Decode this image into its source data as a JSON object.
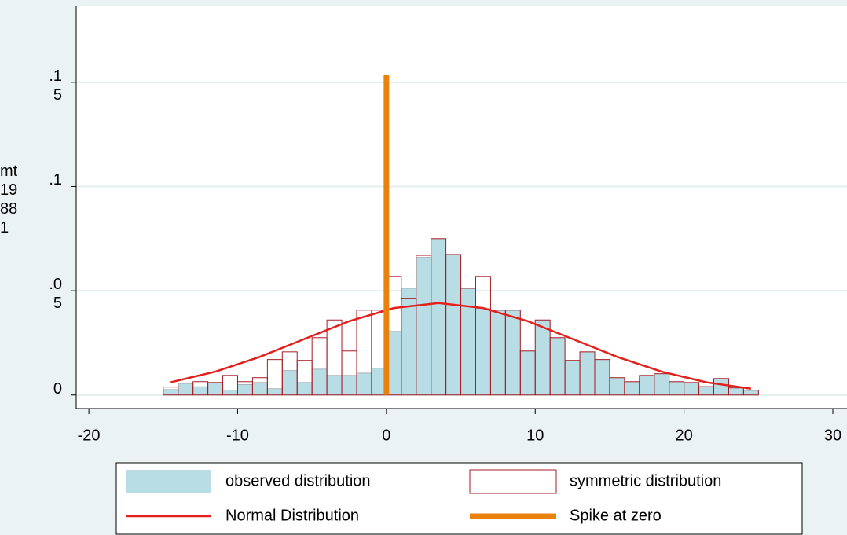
{
  "chart_data": {
    "type": "histogram",
    "y_label": "mt19881",
    "bins": [
      -15,
      -14,
      -13,
      -12,
      -11,
      -10,
      -9,
      -8,
      -7,
      -6,
      -5,
      -4,
      -3,
      -2,
      -1,
      0,
      1,
      2,
      3,
      4,
      5,
      6,
      7,
      8,
      9,
      10,
      11,
      12,
      13,
      14,
      15,
      16,
      17,
      18,
      19,
      20,
      21,
      22,
      23,
      24,
      25
    ],
    "series": [
      {
        "name": "observed distribution",
        "color": "#b9dde5",
        "values": [
          0.0026,
          0.0057,
          0.004,
          0.006,
          0.0023,
          0.005,
          0.006,
          0.003,
          0.0117,
          0.006,
          0.0124,
          0.0094,
          0.0094,
          0.0105,
          0.0128,
          0.0305,
          0.0512,
          0.066,
          0.075,
          0.0674,
          0.0512,
          0.0415,
          0.0407,
          0.0407,
          0.0211,
          0.036,
          0.0275,
          0.0166,
          0.0207,
          0.017,
          0.0083,
          0.0064,
          0.0094,
          0.0102,
          0.0064,
          0.006,
          0.004,
          0.0079,
          0.0034,
          0.0023
        ]
      },
      {
        "name": "symmetric distribution",
        "color": "#a51c24",
        "values": [
          0.0038,
          0.0057,
          0.0064,
          0.006,
          0.0094,
          0.0064,
          0.0083,
          0.017,
          0.0207,
          0.0166,
          0.0275,
          0.036,
          0.0211,
          0.0407,
          0.0407,
          0.0569,
          0.0464,
          0.067,
          0.075,
          0.0674,
          0.0512,
          0.0569,
          0.0407,
          0.0407,
          0.0211,
          0.036,
          0.0275,
          0.0166,
          0.0207,
          0.017,
          0.0083,
          0.0064,
          0.0094,
          0.0102,
          0.0064,
          0.006,
          0.004,
          0.0079,
          0.0034,
          0.0023
        ]
      }
    ],
    "normal": {
      "name": "Normal Distribution",
      "color": "#e3201b",
      "x": [
        -14.5,
        -11.5,
        -8.5,
        -5.5,
        -2.5,
        0.5,
        3.5,
        6.5,
        9.5,
        12.5,
        15.5,
        18.5,
        21.5,
        24.5
      ],
      "values": [
        0.0061,
        0.0112,
        0.0183,
        0.0269,
        0.0354,
        0.0417,
        0.0441,
        0.0417,
        0.0354,
        0.0269,
        0.0183,
        0.0112,
        0.0061,
        0.003
      ]
    },
    "spike": {
      "name": "Spike at zero",
      "color": "#e8820c",
      "x": 0,
      "value": 0.1534
    },
    "xlim": [
      -20.85,
      30.95
    ],
    "ylim": [
      -0.0065,
      0.1865
    ],
    "xticks": [
      -20,
      -10,
      0,
      10,
      20,
      30
    ],
    "yticks": [
      0,
      {
        "value": 0.05,
        "label": ".05"
      },
      {
        "value": 0.1,
        "label": ".1"
      },
      {
        "value": 0.15,
        "label": ".15"
      }
    ],
    "grid": true,
    "legend": "bottom"
  }
}
